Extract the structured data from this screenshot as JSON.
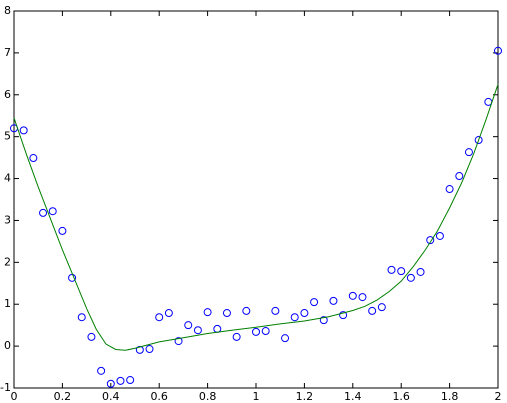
{
  "chart_data": {
    "type": "scatter",
    "series": [
      {
        "style": "markers",
        "color": "#0000ff",
        "x": [
          0,
          0.04,
          0.08,
          0.12,
          0.16,
          0.2,
          0.24,
          0.28,
          0.32,
          0.36,
          0.4,
          0.44,
          0.48,
          0.52,
          0.56,
          0.6,
          0.64,
          0.68,
          0.72,
          0.76,
          0.8,
          0.84,
          0.88,
          0.92,
          0.96,
          1.0,
          1.04,
          1.08,
          1.12,
          1.16,
          1.2,
          1.24,
          1.28,
          1.32,
          1.36,
          1.4,
          1.44,
          1.48,
          1.52,
          1.56,
          1.6,
          1.64,
          1.68,
          1.72,
          1.76,
          1.8,
          1.84,
          1.88,
          1.92,
          1.96,
          2.0
        ],
        "values": [
          5.2,
          5.15,
          4.49,
          3.18,
          3.22,
          2.75,
          1.63,
          0.69,
          0.22,
          -0.59,
          -0.9,
          -0.83,
          -0.81,
          -0.09,
          -0.07,
          0.69,
          0.79,
          0.12,
          0.5,
          0.38,
          0.81,
          0.41,
          0.79,
          0.22,
          0.84,
          0.34,
          0.36,
          0.84,
          0.19,
          0.69,
          0.79,
          1.05,
          0.62,
          1.08,
          0.74,
          1.2,
          1.17,
          0.84,
          0.93,
          1.82,
          1.79,
          1.63,
          1.77,
          2.53,
          2.63,
          3.75,
          4.06,
          4.63,
          4.92,
          5.83,
          7.05
        ]
      },
      {
        "style": "line",
        "color": "#008000",
        "x": [
          0,
          0.05,
          0.1,
          0.15,
          0.2,
          0.25,
          0.3,
          0.34,
          0.38,
          0.42,
          0.46,
          0.5,
          0.6,
          0.7,
          0.8,
          0.9,
          1.0,
          1.1,
          1.2,
          1.3,
          1.4,
          1.45,
          1.5,
          1.55,
          1.6,
          1.65,
          1.7,
          1.75,
          1.8,
          1.85,
          1.9,
          1.95,
          2.0
        ],
        "values": [
          5.45,
          4.6,
          3.8,
          3.05,
          2.3,
          1.6,
          0.9,
          0.4,
          0.05,
          -0.08,
          -0.1,
          -0.05,
          0.1,
          0.2,
          0.3,
          0.38,
          0.45,
          0.53,
          0.6,
          0.7,
          0.85,
          0.95,
          1.1,
          1.3,
          1.55,
          1.9,
          2.3,
          2.75,
          3.3,
          3.9,
          4.6,
          5.4,
          6.25
        ]
      }
    ],
    "xlim": [
      0,
      2
    ],
    "xticks": [
      0,
      0.2,
      0.4,
      0.6,
      0.8,
      1,
      1.2,
      1.4,
      1.6,
      1.8,
      2
    ],
    "ylim": [
      -1,
      8
    ],
    "yticks": [
      -1,
      0,
      1,
      2,
      3,
      4,
      5,
      6,
      7,
      8
    ],
    "grid": false
  }
}
